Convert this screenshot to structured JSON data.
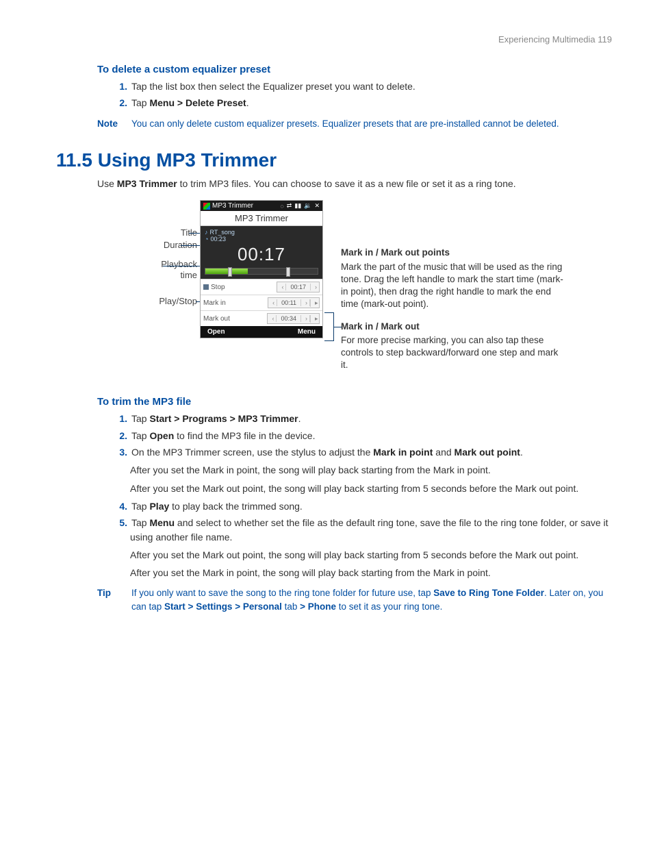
{
  "running_head": "Experiencing Multimedia  119",
  "del_preset": {
    "heading": "To delete a custom equalizer preset",
    "steps": [
      {
        "n": "1.",
        "text": "Tap the list box then select the Equalizer preset you want to delete."
      },
      {
        "n": "2.",
        "pre": "Tap ",
        "bold": "Menu > Delete Preset",
        "post": "."
      }
    ],
    "note_label": "Note",
    "note_text": "You can only delete custom equalizer presets. Equalizer presets that are pre-installed cannot be deleted."
  },
  "section": {
    "title": "11.5  Using MP3 Trimmer",
    "intro_pre": "Use ",
    "intro_bold": "MP3 Trimmer",
    "intro_post": " to trim MP3 files. You can choose to save it as a new file or set it as a ring tone."
  },
  "labels": {
    "title": "Title",
    "duration": "Duration",
    "playback": "Playback",
    "time": "time",
    "playstop": "Play/Stop"
  },
  "phone": {
    "topbar_app": "MP3 Trimmer",
    "app_title": "MP3 Trimmer",
    "song": "RT_song",
    "duration": "00:23",
    "bigtime": "00:17",
    "seek_fill_pct": 38,
    "seek_left_handle_pct": 20,
    "seek_right_handle_pct": 72,
    "stop_text": "Stop",
    "stop_time": "00:17",
    "markin": "Mark in",
    "markin_time": "00:11",
    "markout": "Mark out",
    "markout_time": "00:34",
    "soft_left": "Open",
    "soft_right": "Menu"
  },
  "annot": {
    "a1_title": "Mark in / Mark out points",
    "a1_body": "Mark the part of the music that will be used as the ring tone. Drag the left handle to mark the start time (mark-in point), then drag the right handle to mark the end time (mark-out point).",
    "a2_title": "Mark in / Mark out",
    "a2_body": "For more precise marking, you can also tap these controls to step backward/forward one step and mark it."
  },
  "trim": {
    "heading": "To trim the MP3 file",
    "items": [
      {
        "n": "1.",
        "pre": "Tap ",
        "bold": "Start > Programs > MP3 Trimmer",
        "post": "."
      },
      {
        "n": "2.",
        "pre": "Tap ",
        "bold": "Open",
        "post": " to find the MP3 file in the device."
      },
      {
        "n": "3.",
        "pre": "On the MP3 Trimmer screen, use the stylus to adjust the ",
        "bold": "Mark in point",
        "mid": " and ",
        "bold2": "Mark out point",
        "post": ".",
        "sub": [
          "After you set the Mark in point, the song will play back starting from the Mark in point.",
          "After you set the Mark out point, the song will play back starting from 5 seconds before the Mark out point."
        ]
      },
      {
        "n": "4.",
        "pre": "Tap ",
        "bold": "Play",
        "post": " to play back the trimmed song."
      },
      {
        "n": "5.",
        "pre": "Tap ",
        "bold": "Menu",
        "post": " and select to whether set the file as the default ring tone, save the file to the ring tone folder, or save it using another file name."
      }
    ],
    "tip_label": "Tip",
    "tip_pre": "If you only want to save the song to the ring tone folder for future use, tap ",
    "tip_b1": "Save to Ring Tone Folder",
    "tip_mid": ". Later on, you can tap ",
    "tip_b2": "Start > Settings > Personal",
    "tip_mid2": " tab ",
    "tip_b3": "> Phone",
    "tip_post": " to set it as your ring tone."
  },
  "colors": {
    "heading": "#044fa2",
    "line": "#0a3a6a"
  }
}
